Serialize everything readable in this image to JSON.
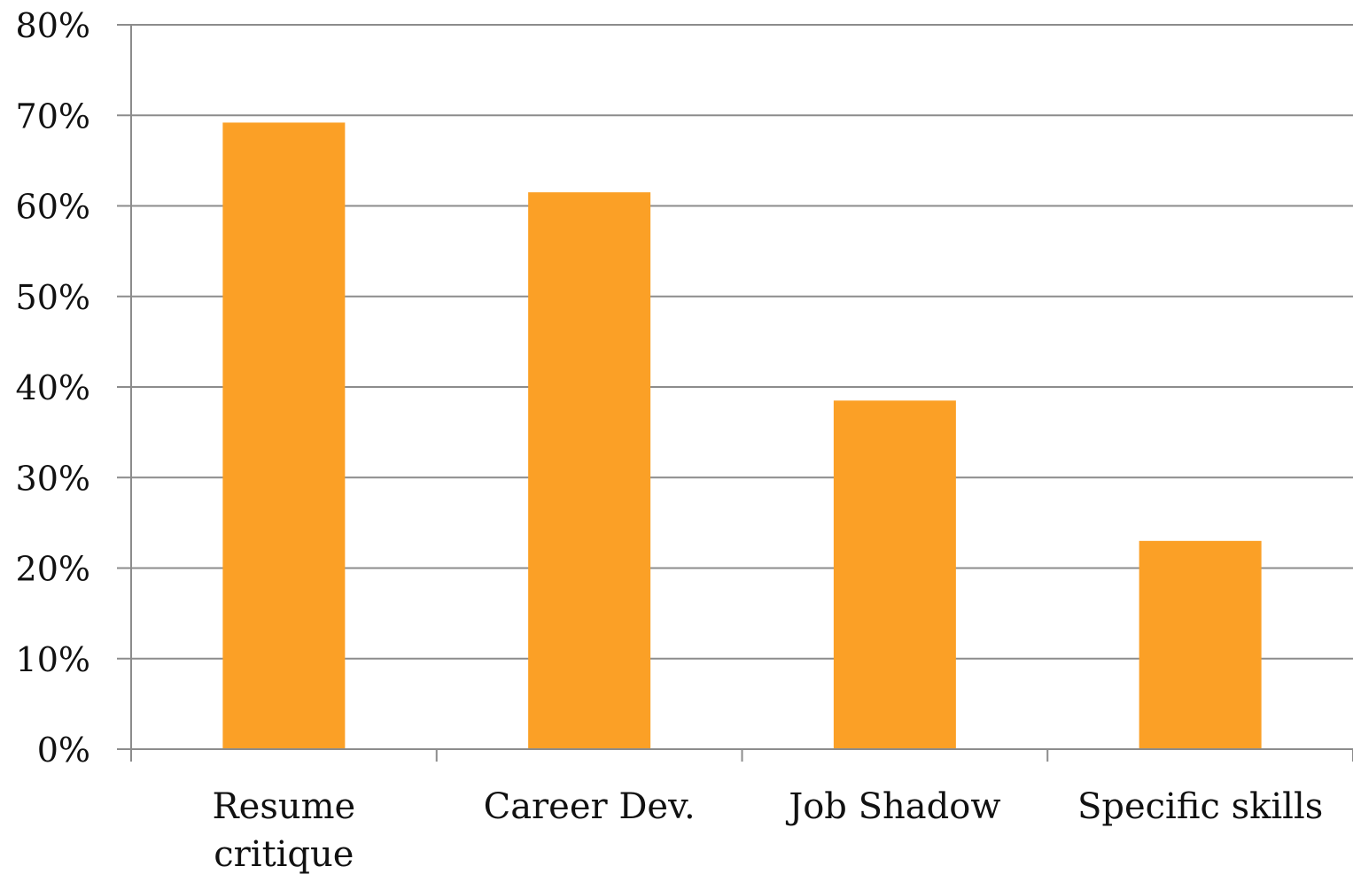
{
  "chart_data": {
    "type": "bar",
    "title": "",
    "xlabel": "",
    "ylabel": "",
    "categories": [
      "Resume critique",
      "Career Dev.",
      "Job Shadow",
      "Specific skills"
    ],
    "category_lines": [
      [
        "Resume",
        "critique"
      ],
      [
        "Career Dev."
      ],
      [
        "Job Shadow"
      ],
      [
        "Specific skills"
      ]
    ],
    "values": [
      69.2,
      61.5,
      38.5,
      23.0
    ],
    "value_unit": "%",
    "ylim": [
      0,
      80
    ],
    "yticks": [
      0,
      10,
      20,
      30,
      40,
      50,
      60,
      70,
      80
    ],
    "ytick_labels": [
      "0%",
      "10%",
      "20%",
      "30%",
      "40%",
      "50%",
      "60%",
      "70%",
      "80%"
    ],
    "grid": true,
    "legend": "none",
    "colors": {
      "bar": "#FBA026",
      "grid": "#8c8c8c",
      "axis": "#8c8c8c"
    }
  }
}
